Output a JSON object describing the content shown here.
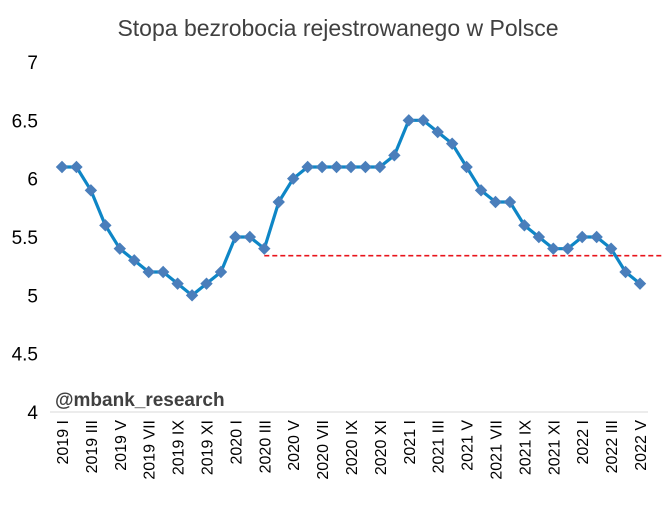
{
  "chart_data": {
    "type": "line",
    "title": "Stopa bezrobocia rejestrowanego w Polsce",
    "watermark": "@mbank_research",
    "xlabel": "",
    "ylabel": "",
    "ylim": [
      4,
      7
    ],
    "yticks": [
      "4",
      "4.5",
      "5",
      "5.5",
      "6",
      "6.5",
      "7"
    ],
    "x": [
      "2019 I",
      "2019 II",
      "2019 III",
      "2019 IV",
      "2019 V",
      "2019 VI",
      "2019 VII",
      "2019 VIII",
      "2019 IX",
      "2019 X",
      "2019 XI",
      "2019 XII",
      "2020 I",
      "2020 II",
      "2020 III",
      "2020 IV",
      "2020 V",
      "2020 VI",
      "2020 VII",
      "2020 VIII",
      "2020 IX",
      "2020 X",
      "2020 XI",
      "2020 XII",
      "2021 I",
      "2021 II",
      "2021 III",
      "2021 IV",
      "2021 V",
      "2021 VI",
      "2021 VII",
      "2021 VIII",
      "2021 IX",
      "2021 X",
      "2021 XI",
      "2021 XII",
      "2022 I",
      "2022 II",
      "2022 III",
      "2022 IV",
      "2022 V"
    ],
    "xtick_labels": [
      "2019 I",
      "2019 III",
      "2019 V",
      "2019 VII",
      "2019 IX",
      "2019 XI",
      "2020 I",
      "2020 III",
      "2020 V",
      "2020 VII",
      "2020 IX",
      "2020 XI",
      "2021 I",
      "2021 III",
      "2021 V",
      "2021 VII",
      "2021 IX",
      "2021 XI",
      "2022 I",
      "2022 III",
      "2022 V"
    ],
    "series": [
      {
        "values": [
          6.1,
          6.1,
          5.9,
          5.6,
          5.4,
          5.3,
          5.2,
          5.2,
          5.1,
          5.0,
          5.1,
          5.2,
          5.5,
          5.5,
          5.4,
          5.8,
          6.0,
          6.1,
          6.1,
          6.1,
          6.1,
          6.1,
          6.1,
          6.2,
          6.5,
          6.5,
          6.4,
          6.3,
          6.1,
          5.9,
          5.8,
          5.8,
          5.6,
          5.5,
          5.4,
          5.4,
          5.5,
          5.5,
          5.4,
          5.2,
          5.1
        ],
        "line_color": "#0E86C6",
        "marker_color": "#4A7EBB"
      }
    ],
    "reference_line": {
      "value": 5.34,
      "x_start": "2020 III",
      "x_end": "2022 V",
      "color": "#E8141C",
      "style": "dashed"
    },
    "grid": false,
    "legend": "none"
  }
}
